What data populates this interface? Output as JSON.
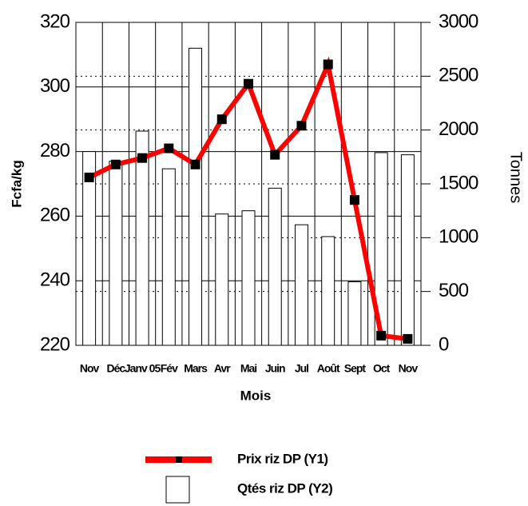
{
  "chart_data": {
    "type": "bar-line",
    "x_label": "Mois",
    "y_label": "Fcfa/kg",
    "y2_label": "Tonnes",
    "categories": [
      "Nov",
      "Déc",
      "Janv 05",
      "Fév",
      "Mars",
      "Avr",
      "Mai",
      "Juin",
      "Jul",
      "Août",
      "Sept",
      "Oct",
      "Nov"
    ],
    "series": [
      {
        "name": "Prix riz DP (Y1)",
        "type": "line",
        "color": "#ff0000",
        "values": [
          272,
          276,
          278,
          281,
          276,
          290,
          301,
          279,
          288,
          307,
          265,
          223,
          222
        ]
      },
      {
        "name": "Qtés riz DP (Y2)",
        "type": "bar",
        "axis": "y2",
        "color": "#ffffff",
        "values": [
          1800,
          1710,
          1990,
          1640,
          2760,
          1220,
          1250,
          1460,
          1120,
          1010,
          590,
          1790,
          1770
        ]
      }
    ],
    "ylim": [
      220,
      320
    ],
    "yticks": [
      220,
      240,
      260,
      280,
      300,
      320
    ],
    "y2lim": [
      0,
      3000
    ],
    "y2ticks": [
      0,
      500,
      1000,
      1500,
      2000,
      2500,
      3000
    ],
    "grid": true
  }
}
